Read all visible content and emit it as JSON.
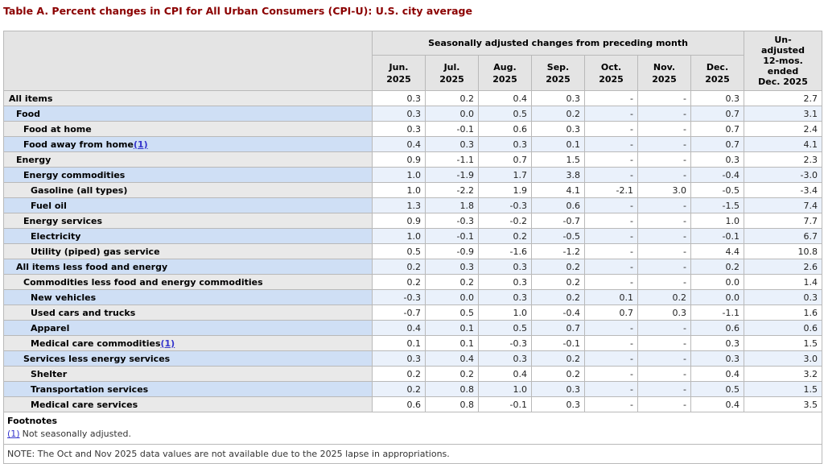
{
  "title": "Table A. Percent changes in CPI for All Urban Consumers (CPI-U): U.S. city average",
  "table": {
    "group_header": "Seasonally adjusted changes from preceding month",
    "unadjusted_header_lines": [
      "Un-",
      "adjusted",
      "12-mos.",
      "ended",
      "Dec. 2025"
    ],
    "month_headers": [
      {
        "month": "Jun.",
        "year": "2025"
      },
      {
        "month": "Jul.",
        "year": "2025"
      },
      {
        "month": "Aug.",
        "year": "2025"
      },
      {
        "month": "Sep.",
        "year": "2025"
      },
      {
        "month": "Oct.",
        "year": "2025"
      },
      {
        "month": "Nov.",
        "year": "2025"
      },
      {
        "month": "Dec.",
        "year": "2025"
      }
    ],
    "rows": [
      {
        "label": "All items",
        "indent": 0,
        "footnote_ref": "",
        "values": [
          "0.3",
          "0.2",
          "0.4",
          "0.3",
          "-",
          "-",
          "0.3",
          "2.7"
        ]
      },
      {
        "label": "Food",
        "indent": 1,
        "footnote_ref": "",
        "values": [
          "0.3",
          "0.0",
          "0.5",
          "0.2",
          "-",
          "-",
          "0.7",
          "3.1"
        ]
      },
      {
        "label": "Food at home",
        "indent": 2,
        "footnote_ref": "",
        "values": [
          "0.3",
          "-0.1",
          "0.6",
          "0.3",
          "-",
          "-",
          "0.7",
          "2.4"
        ]
      },
      {
        "label": "Food away from home",
        "indent": 2,
        "footnote_ref": "(1)",
        "values": [
          "0.4",
          "0.3",
          "0.3",
          "0.1",
          "-",
          "-",
          "0.7",
          "4.1"
        ]
      },
      {
        "label": "Energy",
        "indent": 1,
        "footnote_ref": "",
        "values": [
          "0.9",
          "-1.1",
          "0.7",
          "1.5",
          "-",
          "-",
          "0.3",
          "2.3"
        ]
      },
      {
        "label": "Energy commodities",
        "indent": 2,
        "footnote_ref": "",
        "values": [
          "1.0",
          "-1.9",
          "1.7",
          "3.8",
          "-",
          "-",
          "-0.4",
          "-3.0"
        ]
      },
      {
        "label": "Gasoline (all types)",
        "indent": 3,
        "footnote_ref": "",
        "values": [
          "1.0",
          "-2.2",
          "1.9",
          "4.1",
          "-2.1",
          "3.0",
          "-0.5",
          "-3.4"
        ]
      },
      {
        "label": "Fuel oil",
        "indent": 3,
        "footnote_ref": "",
        "values": [
          "1.3",
          "1.8",
          "-0.3",
          "0.6",
          "-",
          "-",
          "-1.5",
          "7.4"
        ]
      },
      {
        "label": "Energy services",
        "indent": 2,
        "footnote_ref": "",
        "values": [
          "0.9",
          "-0.3",
          "-0.2",
          "-0.7",
          "-",
          "-",
          "1.0",
          "7.7"
        ]
      },
      {
        "label": "Electricity",
        "indent": 3,
        "footnote_ref": "",
        "values": [
          "1.0",
          "-0.1",
          "0.2",
          "-0.5",
          "-",
          "-",
          "-0.1",
          "6.7"
        ]
      },
      {
        "label": "Utility (piped) gas service",
        "indent": 3,
        "footnote_ref": "",
        "values": [
          "0.5",
          "-0.9",
          "-1.6",
          "-1.2",
          "-",
          "-",
          "4.4",
          "10.8"
        ]
      },
      {
        "label": "All items less food and energy",
        "indent": 1,
        "footnote_ref": "",
        "values": [
          "0.2",
          "0.3",
          "0.3",
          "0.2",
          "-",
          "-",
          "0.2",
          "2.6"
        ]
      },
      {
        "label": "Commodities less food and energy commodities",
        "indent": 2,
        "footnote_ref": "",
        "values": [
          "0.2",
          "0.2",
          "0.3",
          "0.2",
          "-",
          "-",
          "0.0",
          "1.4"
        ]
      },
      {
        "label": "New vehicles",
        "indent": 3,
        "footnote_ref": "",
        "values": [
          "-0.3",
          "0.0",
          "0.3",
          "0.2",
          "0.1",
          "0.2",
          "0.0",
          "0.3"
        ]
      },
      {
        "label": "Used cars and trucks",
        "indent": 3,
        "footnote_ref": "",
        "values": [
          "-0.7",
          "0.5",
          "1.0",
          "-0.4",
          "0.7",
          "0.3",
          "-1.1",
          "1.6"
        ]
      },
      {
        "label": "Apparel",
        "indent": 3,
        "footnote_ref": "",
        "values": [
          "0.4",
          "0.1",
          "0.5",
          "0.7",
          "-",
          "-",
          "0.6",
          "0.6"
        ]
      },
      {
        "label": "Medical care commodities",
        "indent": 3,
        "footnote_ref": "(1)",
        "values": [
          "0.1",
          "0.1",
          "-0.3",
          "-0.1",
          "-",
          "-",
          "0.3",
          "1.5"
        ]
      },
      {
        "label": "Services less energy services",
        "indent": 2,
        "footnote_ref": "",
        "values": [
          "0.3",
          "0.4",
          "0.3",
          "0.2",
          "-",
          "-",
          "0.3",
          "3.0"
        ]
      },
      {
        "label": "Shelter",
        "indent": 3,
        "footnote_ref": "",
        "values": [
          "0.2",
          "0.2",
          "0.4",
          "0.2",
          "-",
          "-",
          "0.4",
          "3.2"
        ]
      },
      {
        "label": "Transportation services",
        "indent": 3,
        "footnote_ref": "",
        "values": [
          "0.2",
          "0.8",
          "1.0",
          "0.3",
          "-",
          "-",
          "0.5",
          "1.5"
        ]
      },
      {
        "label": "Medical care services",
        "indent": 3,
        "footnote_ref": "",
        "values": [
          "0.6",
          "0.8",
          "-0.1",
          "0.3",
          "-",
          "-",
          "0.4",
          "3.5"
        ]
      }
    ]
  },
  "footnotes": {
    "heading": "Footnotes",
    "items": [
      {
        "ref": "(1)",
        "text": "Not seasonally adjusted."
      }
    ],
    "note": "NOTE: The Oct and Nov 2025 data values are not available due to the 2025 lapse in appropriations."
  },
  "colors": {
    "title": "#8b0000",
    "header_bg": "#e4e4e4",
    "row_gray_label": "#e9e9e9",
    "row_blue_label": "#cfdff5",
    "row_blue_data": "#eaf1fb",
    "border": "#b9b9b9",
    "link": "#3333cc"
  }
}
